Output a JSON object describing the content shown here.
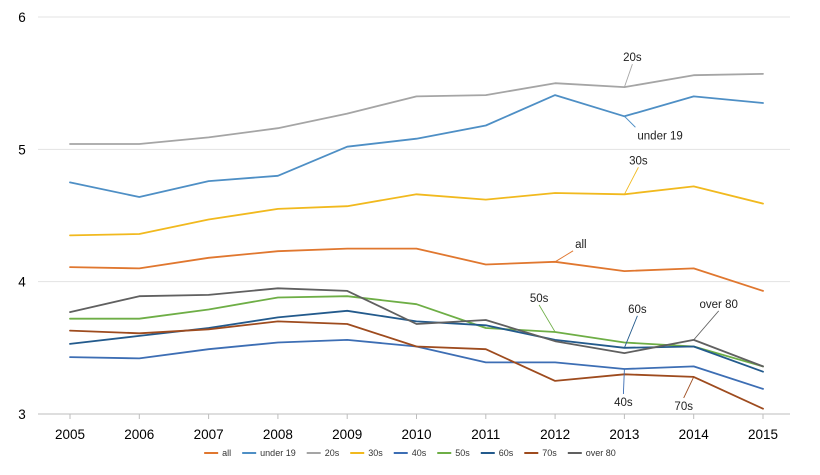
{
  "chart_data": {
    "type": "line",
    "title": "",
    "xlabel": "",
    "ylabel": "",
    "x": [
      "2005",
      "2006",
      "2007",
      "2008",
      "2009",
      "2010",
      "2011",
      "2012",
      "2013",
      "2014",
      "2015"
    ],
    "ylim": [
      3,
      6
    ],
    "yticks": [
      3,
      4,
      5,
      6
    ],
    "grid": "horizontal",
    "legend_position": "bottom",
    "series": [
      {
        "name": "all",
        "color": "#E0772F",
        "values": [
          4.11,
          4.1,
          4.18,
          4.23,
          4.25,
          4.25,
          4.13,
          4.15,
          4.08,
          4.1,
          3.93
        ]
      },
      {
        "name": "under 19",
        "color": "#4E8FC5",
        "values": [
          4.75,
          4.64,
          4.76,
          4.8,
          5.02,
          5.08,
          5.18,
          5.41,
          5.25,
          5.4,
          5.35
        ]
      },
      {
        "name": "20s",
        "color": "#A5A5A5",
        "values": [
          5.04,
          5.04,
          5.09,
          5.16,
          5.27,
          5.4,
          5.41,
          5.5,
          5.47,
          5.56,
          5.57
        ]
      },
      {
        "name": "30s",
        "color": "#F1B91E",
        "values": [
          4.35,
          4.36,
          4.47,
          4.55,
          4.57,
          4.66,
          4.62,
          4.67,
          4.66,
          4.72,
          4.59
        ]
      },
      {
        "name": "40s",
        "color": "#3D6EB4",
        "values": [
          3.43,
          3.42,
          3.49,
          3.54,
          3.56,
          3.51,
          3.39,
          3.39,
          3.34,
          3.36,
          3.19
        ]
      },
      {
        "name": "50s",
        "color": "#6EAE46",
        "values": [
          3.72,
          3.72,
          3.79,
          3.88,
          3.89,
          3.83,
          3.65,
          3.62,
          3.54,
          3.51,
          3.36
        ]
      },
      {
        "name": "60s",
        "color": "#235A8C",
        "values": [
          3.53,
          3.59,
          3.65,
          3.73,
          3.78,
          3.7,
          3.67,
          3.56,
          3.5,
          3.51,
          3.32
        ]
      },
      {
        "name": "70s",
        "color": "#9E4B1E",
        "values": [
          3.63,
          3.61,
          3.64,
          3.7,
          3.68,
          3.51,
          3.49,
          3.25,
          3.3,
          3.28,
          3.04
        ]
      },
      {
        "name": "over 80",
        "color": "#606060",
        "values": [
          3.77,
          3.89,
          3.9,
          3.95,
          3.93,
          3.68,
          3.71,
          3.55,
          3.46,
          3.56,
          3.36
        ]
      }
    ],
    "annotations": [
      {
        "text": "20s",
        "series": "20s",
        "at": "2013"
      },
      {
        "text": "under 19",
        "series": "under 19",
        "at": "2013"
      },
      {
        "text": "30s",
        "series": "30s",
        "at": "2013"
      },
      {
        "text": "all",
        "series": "all",
        "at": "2012"
      },
      {
        "text": "50s",
        "series": "50s",
        "at": "2012"
      },
      {
        "text": "60s",
        "series": "60s",
        "at": "2013"
      },
      {
        "text": "over 80",
        "series": "over 80",
        "at": "2014"
      },
      {
        "text": "40s",
        "series": "40s",
        "at": "2013"
      },
      {
        "text": "70s",
        "series": "70s",
        "at": "2014"
      }
    ]
  }
}
